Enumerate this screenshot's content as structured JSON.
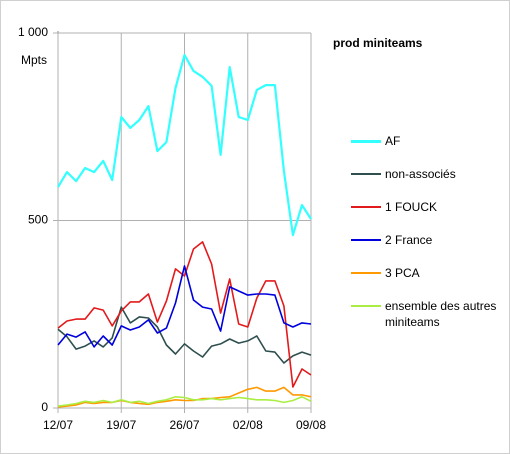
{
  "chart_data": {
    "type": "line",
    "title": "prod miniteams",
    "y_label": "Mpts",
    "categories": [
      "12/07",
      null,
      null,
      null,
      null,
      null,
      null,
      "19/07",
      null,
      null,
      null,
      null,
      null,
      null,
      "26/07",
      null,
      null,
      null,
      null,
      null,
      null,
      "02/08",
      null,
      null,
      null,
      null,
      null,
      null,
      "09/08"
    ],
    "ylim": [
      0,
      1000
    ],
    "yticks": [
      0,
      500,
      {
        "value": 1000,
        "label": "1 000"
      }
    ],
    "grid": true,
    "series": [
      {
        "name": "AF",
        "color": "#33ffff",
        "values": [
          589,
          629,
          605,
          640,
          629,
          659,
          608,
          776,
          747,
          768,
          805,
          685,
          709,
          853,
          941,
          899,
          883,
          859,
          675,
          909,
          776,
          768,
          848,
          861,
          861,
          632,
          461,
          541,
          504
        ]
      },
      {
        "name": "non-associés",
        "color": "#2f4f4f",
        "values": [
          210,
          190,
          157,
          165,
          179,
          163,
          187,
          269,
          227,
          243,
          240,
          216,
          168,
          144,
          171,
          152,
          136,
          165,
          171,
          184,
          173,
          179,
          192,
          152,
          149,
          120,
          139,
          149,
          141
        ]
      },
      {
        "name": "1 FOUCK",
        "color": "#e31a1c",
        "values": [
          213,
          232,
          237,
          237,
          267,
          261,
          219,
          259,
          283,
          283,
          304,
          229,
          285,
          371,
          352,
          424,
          443,
          384,
          253,
          344,
          224,
          216,
          293,
          339,
          339,
          272,
          56,
          104,
          88
        ]
      },
      {
        "name": "2 France",
        "color": "#0000dd",
        "values": [
          168,
          197,
          189,
          203,
          163,
          192,
          168,
          219,
          208,
          216,
          235,
          200,
          213,
          280,
          379,
          288,
          269,
          264,
          205,
          323,
          312,
          301,
          304,
          304,
          301,
          227,
          216,
          227,
          224
        ]
      },
      {
        "name": "3 PCA",
        "color": "#ff9900",
        "values": [
          3,
          5,
          8,
          15,
          12,
          15,
          15,
          20,
          15,
          12,
          10,
          15,
          18,
          22,
          20,
          20,
          25,
          25,
          28,
          30,
          40,
          50,
          55,
          45,
          45,
          55,
          35,
          35,
          30
        ]
      },
      {
        "name": "ensemble des autres miniteams",
        "color": "#aaee44",
        "values": [
          5,
          8,
          12,
          18,
          15,
          20,
          15,
          22,
          15,
          18,
          12,
          18,
          22,
          30,
          28,
          22,
          22,
          25,
          22,
          25,
          28,
          25,
          22,
          22,
          20,
          15,
          20,
          30,
          18
        ]
      }
    ]
  }
}
